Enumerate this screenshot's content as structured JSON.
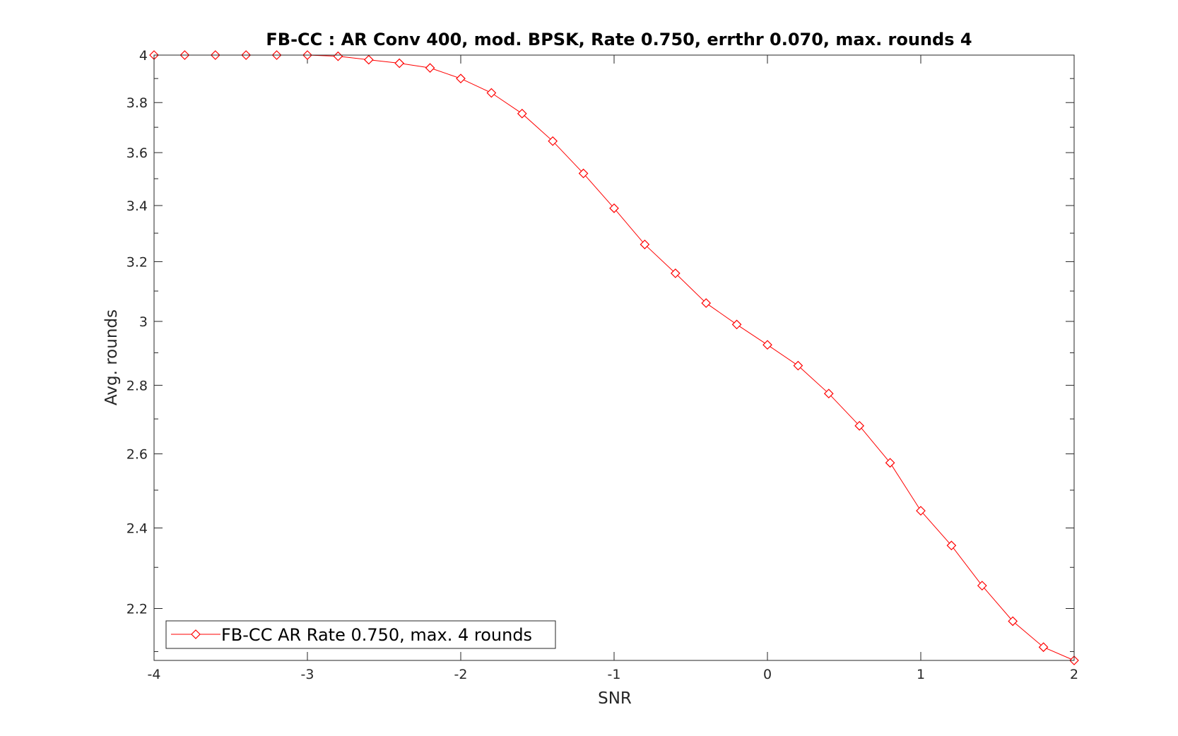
{
  "chart_data": {
    "type": "line",
    "title": "FB-CC : AR Conv 400, mod. BPSK, Rate 0.750, errthr 0.070, max. rounds 4",
    "xlabel": "SNR",
    "ylabel": "Avg. rounds",
    "xlim": [
      -4,
      2
    ],
    "ylim": [
      2.08,
      4
    ],
    "yscale": "log",
    "x_ticks": [
      -4,
      -3,
      -2,
      -1,
      0,
      1,
      2
    ],
    "x_tick_labels": [
      "-4",
      "-3",
      "-2",
      "-1",
      "0",
      "1",
      "2"
    ],
    "y_ticks": [
      2.2,
      2.4,
      2.6,
      2.8,
      3,
      3.2,
      3.4,
      3.6,
      3.8,
      4
    ],
    "y_tick_labels": [
      "2.2",
      "2.4",
      "2.6",
      "2.8",
      "3",
      "3.2",
      "3.4",
      "3.6",
      "3.8",
      "4"
    ],
    "grid": false,
    "box": true,
    "legend_position": "bottom-left",
    "series": [
      {
        "name": "FB-CC AR Rate 0.750, max. 4 rounds",
        "color": "#ff0000",
        "marker": "diamond",
        "x": [
          -4,
          -3.8,
          -3.6,
          -3.4,
          -3.2,
          -3,
          -2.8,
          -2.6,
          -2.4,
          -2.2,
          -2,
          -1.8,
          -1.6,
          -1.4,
          -1.2,
          -1,
          -0.8,
          -0.6,
          -0.4,
          -0.2,
          0,
          0.2,
          0.4,
          0.6,
          0.8,
          1,
          1.2,
          1.4,
          1.6,
          1.8,
          2
        ],
        "y": [
          4.0,
          4.0,
          4.0,
          4.0,
          4.0,
          4.0,
          3.995,
          3.98,
          3.965,
          3.945,
          3.9,
          3.84,
          3.755,
          3.645,
          3.52,
          3.39,
          3.26,
          3.16,
          3.06,
          2.99,
          2.925,
          2.86,
          2.775,
          2.68,
          2.575,
          2.445,
          2.355,
          2.255,
          2.17,
          2.11,
          2.08
        ]
      }
    ]
  }
}
